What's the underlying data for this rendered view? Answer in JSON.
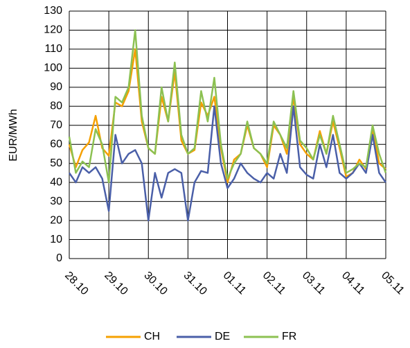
{
  "chart_data": {
    "type": "line",
    "y_label": "EUR/MWh",
    "x": [
      0,
      4,
      8,
      12,
      16,
      20,
      24,
      28,
      32,
      36,
      40,
      44,
      48,
      52,
      56,
      60,
      64,
      68,
      72,
      76,
      80,
      84,
      88,
      92,
      96,
      100,
      104,
      108,
      112,
      116,
      120,
      124,
      128,
      132,
      136,
      140,
      144,
      148,
      152,
      156,
      160,
      164,
      168,
      172,
      176,
      180,
      184,
      188,
      192
    ],
    "xlim": [
      0,
      192
    ],
    "xticks": [
      {
        "value": 0,
        "label": "28.10"
      },
      {
        "value": 24,
        "label": "29.10"
      },
      {
        "value": 48,
        "label": "30.10"
      },
      {
        "value": 72,
        "label": "31.10"
      },
      {
        "value": 96,
        "label": "01.11"
      },
      {
        "value": 120,
        "label": "02.11"
      },
      {
        "value": 144,
        "label": "03.11"
      },
      {
        "value": 168,
        "label": "04.11"
      },
      {
        "value": 192,
        "label": "05.11"
      }
    ],
    "ylim": [
      0,
      130
    ],
    "yticks": [
      0,
      10,
      20,
      30,
      40,
      50,
      60,
      70,
      80,
      90,
      100,
      110,
      120,
      130
    ],
    "grid": true,
    "legend": "bottom",
    "series": [
      {
        "name": "CH",
        "color": "#f5a000",
        "values": [
          60,
          48,
          57,
          61,
          75,
          58,
          54,
          82,
          80,
          88,
          110,
          72,
          58,
          55,
          85,
          72,
          98,
          62,
          55,
          57,
          82,
          75,
          85,
          58,
          40,
          52,
          55,
          70,
          58,
          55,
          48,
          70,
          65,
          55,
          85,
          60,
          55,
          52,
          67,
          55,
          72,
          58,
          43,
          45,
          52,
          47,
          68,
          50,
          47
        ]
      },
      {
        "name": "DE",
        "color": "#4a5fa8",
        "values": [
          45,
          40,
          48,
          45,
          48,
          42,
          25,
          65,
          50,
          55,
          57,
          50,
          20,
          45,
          32,
          45,
          47,
          45,
          20,
          40,
          46,
          45,
          80,
          50,
          37,
          42,
          50,
          45,
          42,
          40,
          45,
          42,
          55,
          45,
          80,
          48,
          44,
          42,
          60,
          48,
          65,
          45,
          42,
          45,
          50,
          45,
          65,
          45,
          40
        ]
      },
      {
        "name": "FR",
        "color": "#8cc152",
        "values": [
          64,
          45,
          51,
          48,
          68,
          60,
          40,
          85,
          82,
          90,
          120,
          75,
          58,
          55,
          90,
          72,
          103,
          65,
          55,
          58,
          88,
          72,
          95,
          60,
          42,
          50,
          55,
          72,
          58,
          55,
          50,
          72,
          65,
          58,
          88,
          62,
          58,
          52,
          65,
          55,
          75,
          60,
          45,
          47,
          50,
          48,
          70,
          55,
          45
        ]
      }
    ]
  }
}
